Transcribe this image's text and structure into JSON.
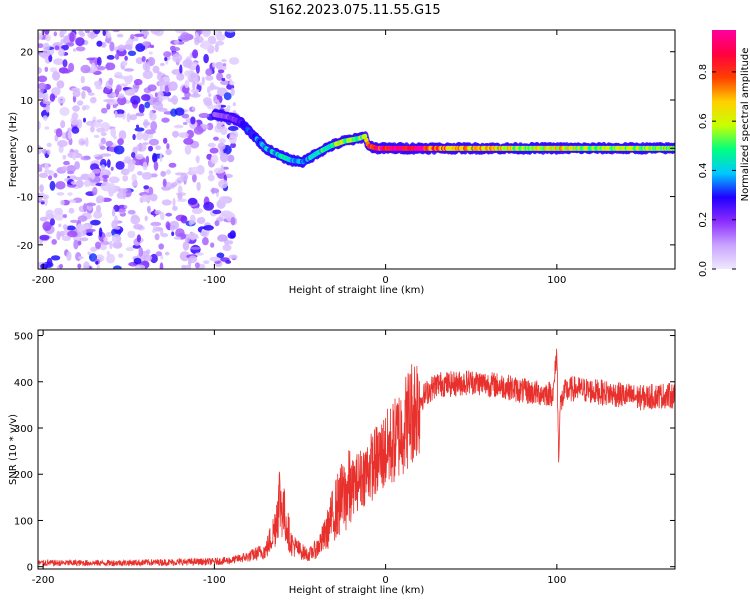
{
  "figure_title": "S162.2023.075.11.55.G15",
  "chart_data": [
    {
      "type": "heatmap",
      "xlabel": "Height of straight line (km)",
      "ylabel": "Frequency (Hz)",
      "xlim": [
        -203,
        169
      ],
      "ylim": [
        -25,
        24.5
      ],
      "x_ticks": [
        -200,
        -100,
        0,
        100
      ],
      "x_tick_labels": [
        "-200",
        "-100",
        "0",
        "100"
      ],
      "y_ticks": [
        -20,
        -10,
        0,
        10,
        20
      ],
      "y_tick_labels": [
        "-20",
        "-10",
        "0",
        "10",
        "20"
      ],
      "colorbar": {
        "label": "Normalized spectral amplitude",
        "range": [
          0,
          0.97
        ],
        "ticks": [
          0.0,
          0.2,
          0.4,
          0.6,
          0.8
        ],
        "tick_labels": [
          "0.0",
          "0.2",
          "0.4",
          "0.6",
          "0.8"
        ],
        "colors": [
          "#f0e8ff",
          "#c9a3ff",
          "#8a2cff",
          "#2000ff",
          "#00c8ff",
          "#00ff80",
          "#c8ff00",
          "#ffd000",
          "#ff4000",
          "#ff0040",
          "#ff00a0"
        ]
      },
      "noise_region": {
        "x_range": [
          -203,
          -88
        ],
        "y_range": [
          -25,
          24.5
        ],
        "typical_amplitude": 0.05
      },
      "ridge": {
        "x": [
          -100,
          -92,
          -85,
          -78,
          -70,
          -62,
          -55,
          -48,
          -40,
          -32,
          -24,
          -16,
          -12,
          -10,
          -5,
          0,
          20,
          40,
          60,
          80,
          100,
          120,
          140,
          169
        ],
        "frequency": [
          7,
          6.5,
          5.5,
          3,
          0,
          -1.5,
          -2.5,
          -2.8,
          -1,
          0.5,
          1.5,
          2,
          2.5,
          0.5,
          0,
          0,
          0,
          0,
          0,
          0,
          0,
          0,
          0,
          0
        ],
        "amplitude": [
          0.18,
          0.2,
          0.25,
          0.35,
          0.4,
          0.45,
          0.45,
          0.4,
          0.45,
          0.55,
          0.6,
          0.6,
          0.55,
          0.9,
          0.95,
          0.97,
          0.95,
          0.7,
          0.75,
          0.6,
          0.7,
          0.6,
          0.6,
          0.6
        ]
      }
    },
    {
      "type": "line",
      "xlabel": "Height of straight line (km)",
      "ylabel": "SNR (10 * v/v)",
      "xlim": [
        -203,
        169
      ],
      "ylim": [
        -5,
        512
      ],
      "x_ticks": [
        -200,
        -100,
        0,
        100
      ],
      "x_tick_labels": [
        "-200",
        "-100",
        "0",
        "100"
      ],
      "y_ticks": [
        0,
        100,
        200,
        300,
        400,
        500
      ],
      "y_tick_labels": [
        "0",
        "100",
        "200",
        "300",
        "400",
        "500"
      ],
      "color": "#e8302c",
      "x": [
        -203,
        -180,
        -160,
        -140,
        -120,
        -100,
        -90,
        -80,
        -70,
        -65,
        -62,
        -58,
        -55,
        -50,
        -45,
        -40,
        -35,
        -30,
        -25,
        -20,
        -15,
        -10,
        -5,
        0,
        5,
        10,
        15,
        20,
        25,
        30,
        40,
        50,
        60,
        70,
        80,
        90,
        98,
        100,
        101,
        102,
        105,
        110,
        120,
        130,
        140,
        150,
        160,
        169
      ],
      "values": [
        8,
        8,
        8,
        9,
        10,
        11,
        14,
        22,
        35,
        80,
        150,
        95,
        50,
        35,
        25,
        40,
        70,
        120,
        150,
        170,
        190,
        210,
        230,
        250,
        270,
        300,
        335,
        360,
        380,
        395,
        395,
        400,
        395,
        390,
        380,
        375,
        375,
        470,
        240,
        350,
        380,
        385,
        380,
        375,
        370,
        365,
        370,
        370
      ]
    }
  ]
}
